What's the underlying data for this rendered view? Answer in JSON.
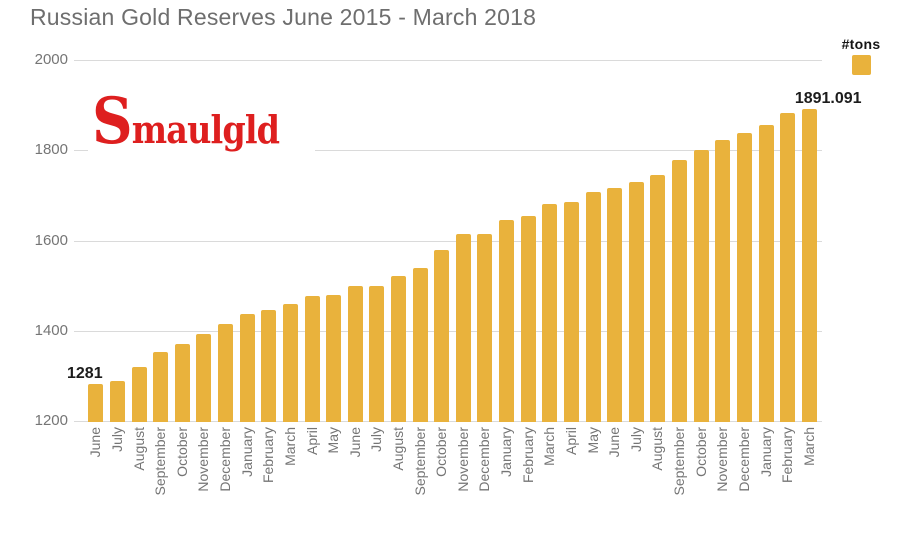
{
  "title": "Russian Gold Reserves June 2015 - March 2018",
  "legend": {
    "label": "#tons"
  },
  "watermark": {
    "text": "Smaulgld"
  },
  "colors": {
    "background": "#FFFFFF",
    "bar": "#E9B23C",
    "grid": "#DADADA",
    "axis_text": "#757575",
    "title_text": "#6E6E6E",
    "annotation_text": "#1C1C1C",
    "watermark_text": "#DE1F1F"
  },
  "chart_data": {
    "type": "bar",
    "title": "Russian Gold Reserves June 2015 - March 2018",
    "xlabel": "",
    "ylabel": "",
    "ylim": [
      1200,
      2000
    ],
    "yticks": [
      1200,
      1400,
      1600,
      1800,
      2000
    ],
    "grid": true,
    "legend_position": "top-right",
    "legend_entries": [
      "#tons"
    ],
    "series_name": "#tons",
    "categories": [
      "June",
      "July",
      "August",
      "September",
      "October",
      "November",
      "December",
      "January",
      "February",
      "March",
      "April",
      "May",
      "June",
      "July",
      "August",
      "September",
      "October",
      "November",
      "December",
      "January",
      "February",
      "March",
      "April",
      "May",
      "June",
      "July",
      "August",
      "September",
      "October",
      "November",
      "December",
      "January",
      "February",
      "March"
    ],
    "values": [
      1281,
      1288,
      1319,
      1352,
      1371,
      1393,
      1415,
      1437,
      1446,
      1459,
      1477,
      1480,
      1499,
      1499,
      1521,
      1540,
      1580,
      1614,
      1614,
      1645,
      1655,
      1680,
      1686,
      1708,
      1716,
      1730,
      1745,
      1779,
      1801,
      1823,
      1838,
      1857,
      1882,
      1891.091
    ],
    "bar_labels": {
      "first": "1281",
      "last": "1891.091"
    }
  }
}
